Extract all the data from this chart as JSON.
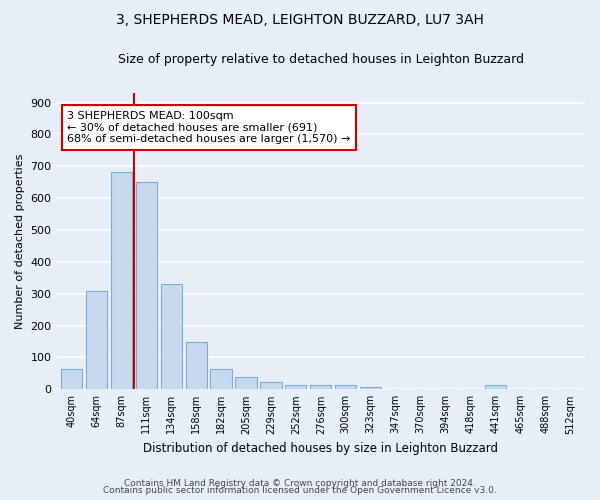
{
  "title": "3, SHEPHERDS MEAD, LEIGHTON BUZZARD, LU7 3AH",
  "subtitle": "Size of property relative to detached houses in Leighton Buzzard",
  "xlabel": "Distribution of detached houses by size in Leighton Buzzard",
  "ylabel": "Number of detached properties",
  "footnote1": "Contains HM Land Registry data © Crown copyright and database right 2024.",
  "footnote2": "Contains public sector information licensed under the Open Government Licence v3.0.",
  "bar_labels": [
    "40sqm",
    "64sqm",
    "87sqm",
    "111sqm",
    "134sqm",
    "158sqm",
    "182sqm",
    "205sqm",
    "229sqm",
    "252sqm",
    "276sqm",
    "300sqm",
    "323sqm",
    "347sqm",
    "370sqm",
    "394sqm",
    "418sqm",
    "441sqm",
    "465sqm",
    "488sqm",
    "512sqm"
  ],
  "bar_values": [
    65,
    310,
    683,
    650,
    330,
    148,
    65,
    38,
    22,
    12,
    12,
    12,
    8,
    0,
    0,
    0,
    0,
    12,
    0,
    0,
    0
  ],
  "bar_color": "#c8d9ef",
  "bar_edge_color": "#7aadd4",
  "annotation_label": "3 SHEPHERDS MEAD: 100sqm",
  "annotation_line1": "← 30% of detached houses are smaller (691)",
  "annotation_line2": "68% of semi-detached houses are larger (1,570) →",
  "annotation_box_color": "#cc0000",
  "vline_color": "#cc0000",
  "vline_x_idx": 2.5,
  "ylim": [
    0,
    930
  ],
  "yticks": [
    0,
    100,
    200,
    300,
    400,
    500,
    600,
    700,
    800,
    900
  ],
  "bg_color": "#e8eef8",
  "grid_color": "#ffffff",
  "bar_width": 0.85,
  "figsize": [
    6.0,
    5.0
  ],
  "dpi": 100
}
